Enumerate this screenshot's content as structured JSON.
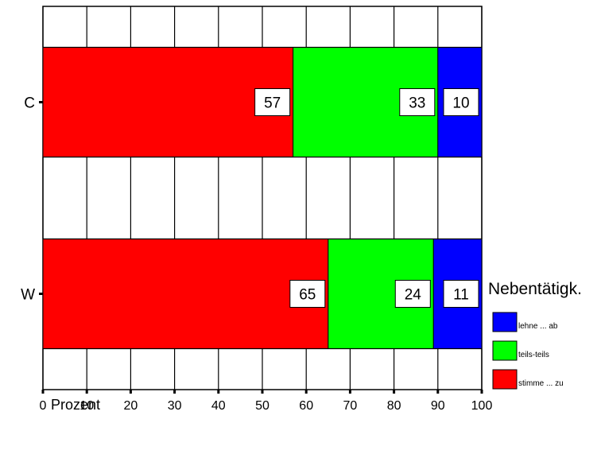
{
  "chart_data": {
    "type": "bar",
    "orientation": "horizontal",
    "stacked": true,
    "percent": true,
    "categories": [
      "C",
      "W"
    ],
    "series": [
      {
        "name": "stimme ... zu",
        "values": [
          57,
          65
        ],
        "color": "#ff0000"
      },
      {
        "name": "teils-teils",
        "values": [
          33,
          24
        ],
        "color": "#00ff00"
      },
      {
        "name": "lehne ... ab",
        "values": [
          10,
          11
        ],
        "color": "#0000ff"
      }
    ],
    "xlabel": "Prozent",
    "ylabel": "",
    "xlim": [
      0,
      100
    ],
    "xticks": [
      "0",
      "10",
      "20",
      "30",
      "40",
      "50",
      "60",
      "70",
      "80",
      "90",
      "100"
    ],
    "grid": true,
    "legend": {
      "title": "Nebentätigk.",
      "placement": "right",
      "items": [
        "lehne ... ab",
        "teils-teils",
        "stimme ... zu"
      ]
    }
  }
}
